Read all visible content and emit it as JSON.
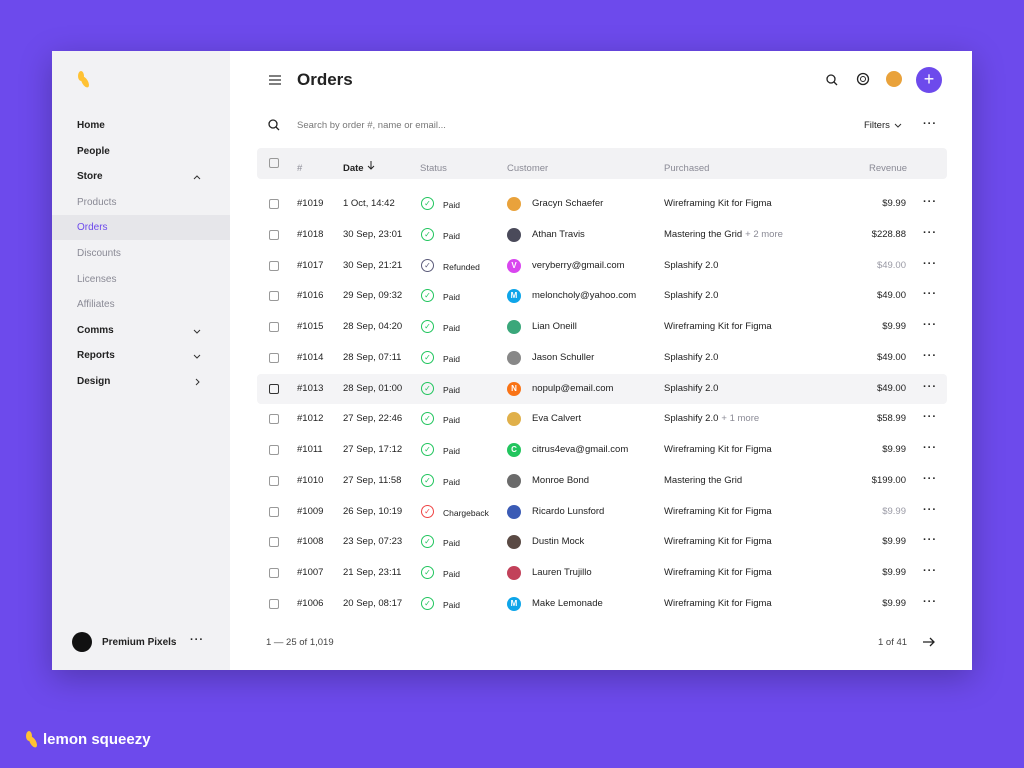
{
  "brand": "lemon squeezy",
  "sidebar": {
    "nav": [
      "Home",
      "People",
      "Store",
      "Products",
      "Orders",
      "Discounts",
      "Licenses",
      "Affiliates",
      "Comms",
      "Reports",
      "Design"
    ],
    "account": "Premium Pixels"
  },
  "header": {
    "title": "Orders"
  },
  "search": {
    "placeholder": "Search by order #, name or email...",
    "filters": "Filters"
  },
  "table": {
    "columns": [
      "#",
      "Date",
      "Status",
      "Customer",
      "Purchased",
      "Revenue"
    ],
    "rows": [
      {
        "id": "#1019",
        "date": "1 Oct, 14:42",
        "status": "Paid",
        "status_color": "#22c55e",
        "customer": "Gracyn Schaefer",
        "avatar_color": "#e9a23b",
        "purchased": "Wireframing Kit for Figma",
        "revenue": "$9.99",
        "revenue_color": "#222"
      },
      {
        "id": "#1018",
        "date": "30 Sep, 23:01",
        "status": "Paid",
        "status_color": "#22c55e",
        "customer": "Athan Travis",
        "avatar_color": "#4a4a5a",
        "purchased": "Mastering the Grid",
        "more": "+ 2 more",
        "revenue": "$228.88",
        "revenue_color": "#222"
      },
      {
        "id": "#1017",
        "date": "30 Sep, 21:21",
        "status": "Refunded",
        "status_color": "#5b5b7a",
        "customer": "veryberry@gmail.com",
        "avatar_color": "#d946ef",
        "avatar_initial": "V",
        "purchased": "Splashify 2.0",
        "revenue": "$49.00",
        "revenue_color": "#9a9aa5"
      },
      {
        "id": "#1016",
        "date": "29 Sep, 09:32",
        "status": "Paid",
        "status_color": "#22c55e",
        "customer": "meloncholy@yahoo.com",
        "avatar_color": "#0ea5e9",
        "avatar_initial": "M",
        "purchased": "Splashify 2.0",
        "revenue": "$49.00",
        "revenue_color": "#222"
      },
      {
        "id": "#1015",
        "date": "28 Sep, 04:20",
        "status": "Paid",
        "status_color": "#22c55e",
        "customer": "Lian Oneill",
        "avatar_color": "#3aa77a",
        "purchased": "Wireframing Kit for Figma",
        "revenue": "$9.99",
        "revenue_color": "#222"
      },
      {
        "id": "#1014",
        "date": "28 Sep, 07:11",
        "status": "Paid",
        "status_color": "#22c55e",
        "customer": "Jason Schuller",
        "avatar_color": "#888",
        "purchased": "Splashify 2.0",
        "revenue": "$49.00",
        "revenue_color": "#222"
      },
      {
        "id": "#1013",
        "date": "28 Sep, 01:00",
        "status": "Paid",
        "status_color": "#22c55e",
        "customer": "nopulp@email.com",
        "avatar_color": "#f97316",
        "avatar_initial": "N",
        "purchased": "Splashify 2.0",
        "revenue": "$49.00",
        "revenue_color": "#222"
      },
      {
        "id": "#1012",
        "date": "27 Sep, 22:46",
        "status": "Paid",
        "status_color": "#22c55e",
        "customer": "Eva Calvert",
        "avatar_color": "#e0b04a",
        "purchased": "Splashify 2.0",
        "more": "+ 1 more",
        "revenue": "$58.99",
        "revenue_color": "#222"
      },
      {
        "id": "#1011",
        "date": "27 Sep, 17:12",
        "status": "Paid",
        "status_color": "#22c55e",
        "customer": "citrus4eva@gmail.com",
        "avatar_color": "#22c55e",
        "avatar_initial": "C",
        "purchased": "Wireframing Kit for Figma",
        "revenue": "$9.99",
        "revenue_color": "#222"
      },
      {
        "id": "#1010",
        "date": "27 Sep, 11:58",
        "status": "Paid",
        "status_color": "#22c55e",
        "customer": "Monroe Bond",
        "avatar_color": "#6b6b6b",
        "purchased": "Mastering the Grid",
        "revenue": "$199.00",
        "revenue_color": "#222"
      },
      {
        "id": "#1009",
        "date": "26 Sep, 10:19",
        "status": "Chargeback",
        "status_color": "#ef4444",
        "customer": "Ricardo Lunsford",
        "avatar_color": "#3b5bb5",
        "purchased": "Wireframing Kit for Figma",
        "revenue": "$9.99",
        "revenue_color": "#9a9aa5"
      },
      {
        "id": "#1008",
        "date": "23 Sep, 07:23",
        "status": "Paid",
        "status_color": "#22c55e",
        "customer": "Dustin Mock",
        "avatar_color": "#5a4a44",
        "purchased": "Wireframing Kit for Figma",
        "revenue": "$9.99",
        "revenue_color": "#222"
      },
      {
        "id": "#1007",
        "date": "21 Sep, 23:11",
        "status": "Paid",
        "status_color": "#22c55e",
        "customer": "Lauren Trujillo",
        "avatar_color": "#c2415a",
        "purchased": "Wireframing Kit for Figma",
        "revenue": "$9.99",
        "revenue_color": "#222"
      },
      {
        "id": "#1006",
        "date": "20 Sep, 08:17",
        "status": "Paid",
        "status_color": "#22c55e",
        "customer": "Make Lemonade",
        "avatar_color": "#0ea5e9",
        "avatar_initial": "M",
        "purchased": "Wireframing Kit for Figma",
        "revenue": "$9.99",
        "revenue_color": "#222"
      }
    ]
  },
  "footer": {
    "range": "1 — 25 of 1,019",
    "page": "1 of 41"
  }
}
